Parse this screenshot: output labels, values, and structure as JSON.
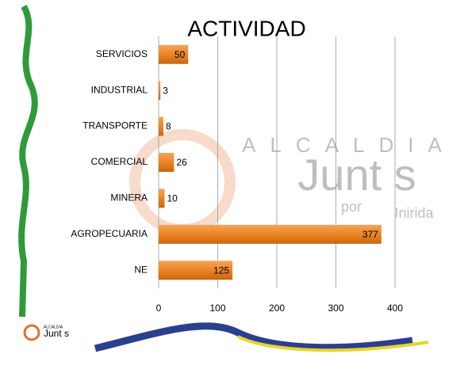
{
  "chart_data": {
    "type": "hbar",
    "title": "ACTIVIDAD",
    "categories": [
      "SERVICIOS",
      "INDUSTRIAL",
      "TRANSPORTE",
      "COMERCIAL",
      "MINERA",
      "AGROPECUARIA",
      "NE"
    ],
    "values": [
      50,
      3,
      8,
      26,
      10,
      377,
      125
    ],
    "color": "#eb8424",
    "xlim": [
      0,
      400
    ],
    "xticks": [
      0,
      100,
      200,
      300,
      400
    ],
    "grid": true
  },
  "watermark": {
    "top": "ALCALDIA",
    "main": "Junt s",
    "sub": "por",
    "place": "Inirida"
  }
}
